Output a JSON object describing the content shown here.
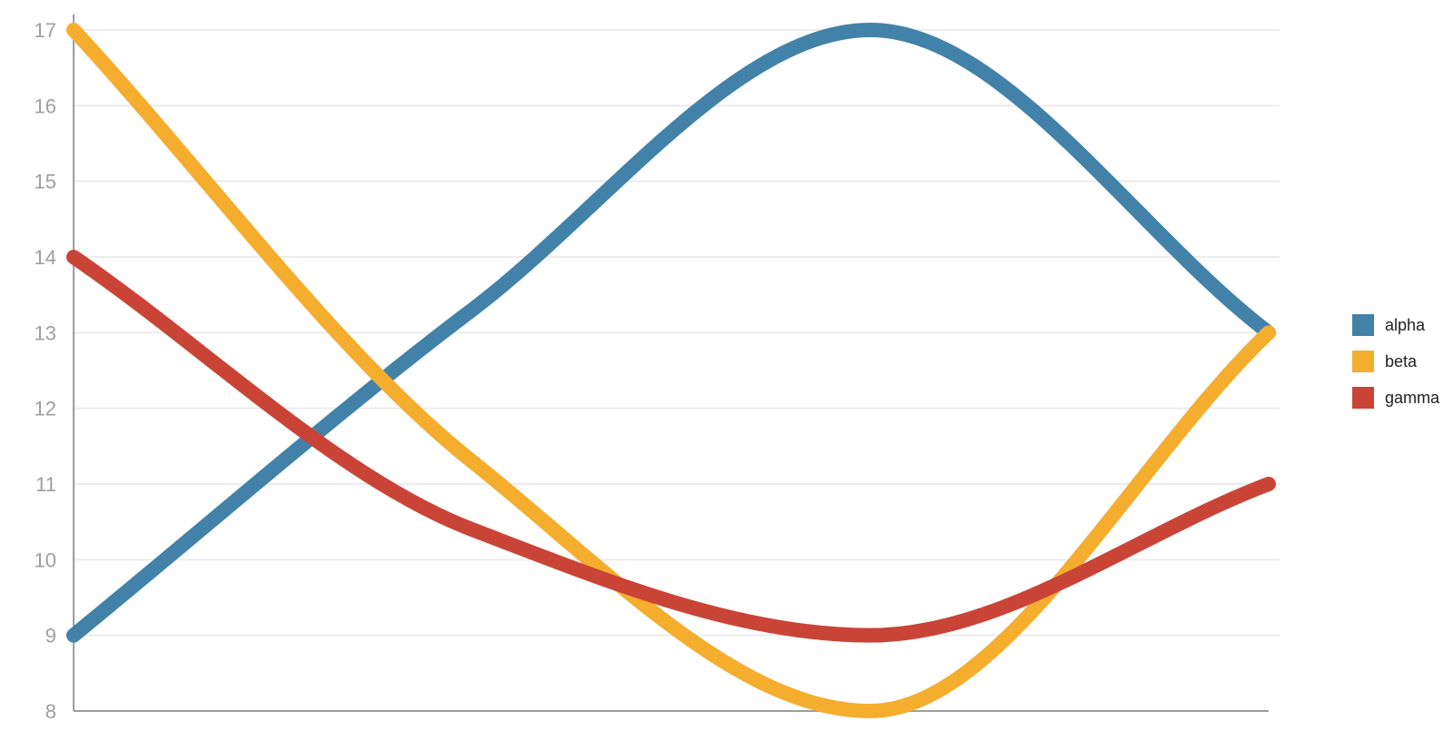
{
  "chart_data": {
    "type": "line",
    "title": "",
    "xlabel": "",
    "ylabel": "",
    "x": [
      0,
      1,
      2,
      3
    ],
    "ylim": [
      8,
      17
    ],
    "yticks": [
      8,
      9,
      10,
      11,
      12,
      13,
      14,
      15,
      16,
      17
    ],
    "grid": true,
    "smooth": true,
    "legend": {
      "position": "right"
    },
    "series": [
      {
        "name": "alpha",
        "color": "#4282a8",
        "values": [
          9,
          13.3,
          17,
          13
        ]
      },
      {
        "name": "beta",
        "color": "#f5ad2e",
        "values": [
          17,
          11.3,
          8,
          13
        ]
      },
      {
        "name": "gamma",
        "color": "#c94437",
        "values": [
          14,
          10.4,
          9,
          11
        ]
      }
    ]
  }
}
